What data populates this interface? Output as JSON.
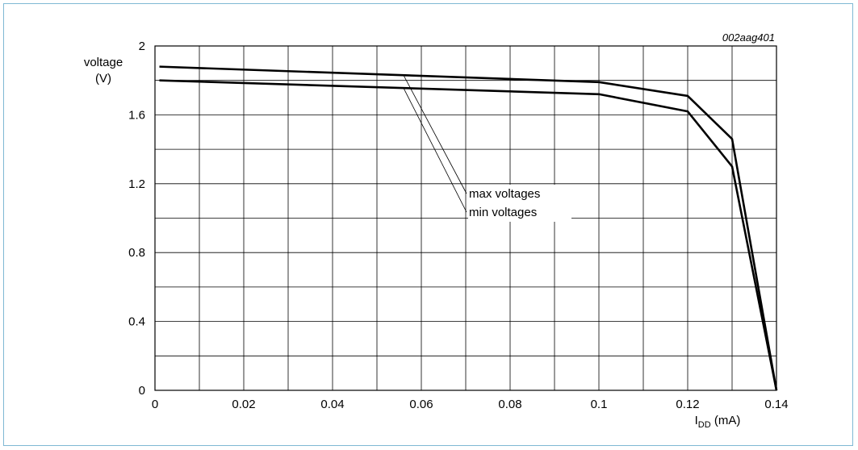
{
  "chart_data": {
    "type": "line",
    "figure_id": "002aag401",
    "ylabel": "voltage",
    "ylabel_unit": "(V)",
    "xlabel_main": "I",
    "xlabel_sub": "DD",
    "xlabel_unit": " (mA)",
    "xlim": [
      0,
      0.14
    ],
    "ylim": [
      0,
      2
    ],
    "grid": true,
    "x_ticks": [
      0,
      0.02,
      0.04,
      0.06,
      0.08,
      0.1,
      0.12,
      0.14
    ],
    "x_tick_labels": [
      "0",
      "0.02",
      "0.04",
      "0.06",
      "0.08",
      "0.1",
      "0.12",
      "0.14"
    ],
    "y_ticks": [
      0,
      0.4,
      0.8,
      1.2,
      1.6,
      2
    ],
    "y_tick_labels": [
      "0",
      "0.4",
      "0.8",
      "1.2",
      "1.6",
      "2"
    ],
    "series": [
      {
        "name": "max voltages",
        "x": [
          0.001,
          0.1,
          0.12,
          0.13,
          0.14
        ],
        "y": [
          1.88,
          1.79,
          1.71,
          1.46,
          0.0
        ]
      },
      {
        "name": "min voltages",
        "x": [
          0.001,
          0.1,
          0.12,
          0.13,
          0.14
        ],
        "y": [
          1.8,
          1.72,
          1.62,
          1.3,
          0.0
        ]
      }
    ],
    "annotations": [
      {
        "text": "max voltages",
        "target_series": "max voltages",
        "target_x": 0.056
      },
      {
        "text": "min voltages",
        "target_series": "min voltages",
        "target_x": 0.056
      }
    ]
  }
}
